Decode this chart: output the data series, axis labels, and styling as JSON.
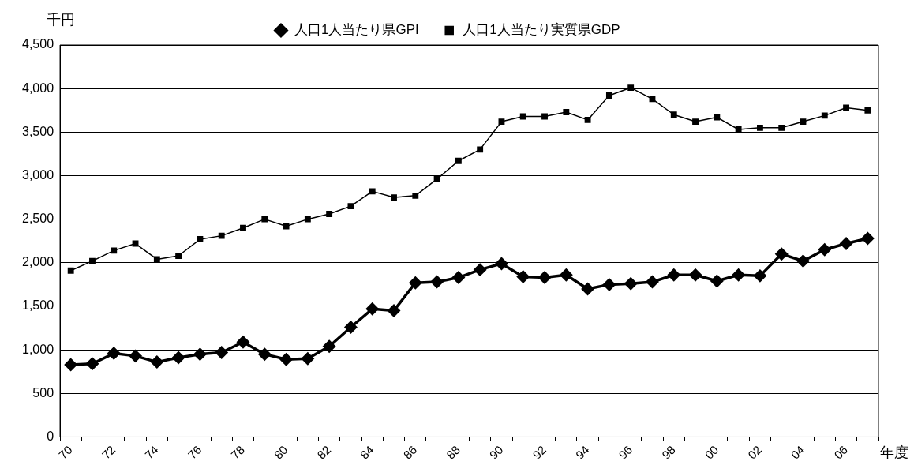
{
  "chart_data": {
    "type": "line",
    "ylabel": "千円",
    "xlabel": "年度",
    "categories": [
      "70",
      null,
      "72",
      null,
      "74",
      null,
      "76",
      null,
      "78",
      null,
      "80",
      null,
      "82",
      null,
      "84",
      null,
      "86",
      null,
      "88",
      null,
      "90",
      null,
      "92",
      null,
      "94",
      null,
      "96",
      null,
      "98",
      null,
      "00",
      null,
      "02",
      null,
      "04",
      null,
      "06",
      null
    ],
    "series": [
      {
        "name": "人口1人当たり県GPI",
        "color": "#000000",
        "marker": "diamond",
        "values": [
          830,
          840,
          960,
          930,
          860,
          910,
          950,
          970,
          1090,
          950,
          890,
          900,
          1040,
          1260,
          1470,
          1450,
          1770,
          1780,
          1830,
          1920,
          1990,
          1840,
          1830,
          1860,
          1700,
          1750,
          1760,
          1780,
          1860,
          1860,
          1790,
          1860,
          1850,
          2100,
          2020,
          2150,
          2220,
          2280
        ]
      },
      {
        "name": "人口1人当たり実質県GDP",
        "color": "#000000",
        "marker": "square",
        "values": [
          1910,
          2020,
          2140,
          2220,
          2040,
          2080,
          2270,
          2310,
          2400,
          2500,
          2420,
          2500,
          2560,
          2650,
          2820,
          2750,
          2770,
          2960,
          3170,
          3300,
          3620,
          3680,
          3680,
          3730,
          3640,
          3920,
          4010,
          3880,
          3700,
          3620,
          3670,
          3530,
          3550,
          3550,
          3620,
          3690,
          3780,
          3750
        ]
      }
    ],
    "ylim": [
      0,
      4500
    ],
    "yticks": [
      0,
      500,
      {
        "value": 1000,
        "label": "1,000"
      },
      {
        "value": 1500,
        "label": "1,500"
      },
      {
        "value": 2000,
        "label": "2,000"
      },
      {
        "value": 2500,
        "label": "2,500"
      },
      {
        "value": 3000,
        "label": "3,000"
      },
      {
        "value": 3500,
        "label": "3,500"
      },
      {
        "value": 4000,
        "label": "4,000"
      },
      {
        "value": 4500,
        "label": "4,500"
      }
    ],
    "grid": "y",
    "legend": "top",
    "line_style": "solid"
  }
}
